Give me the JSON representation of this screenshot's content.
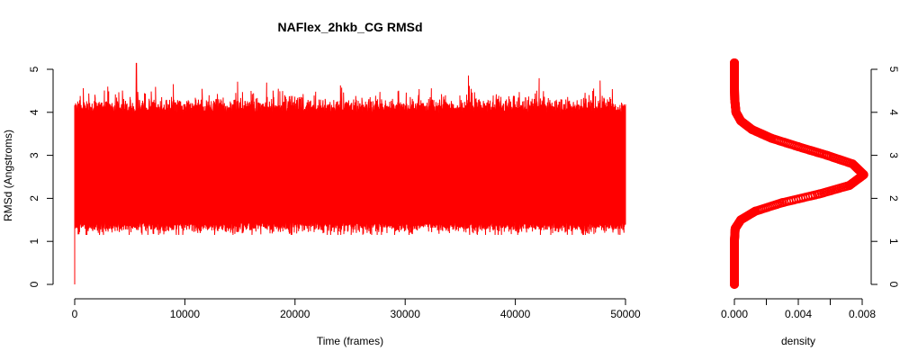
{
  "chart_data": [
    {
      "type": "line",
      "title": "NAFlex_2hkb_CG RMSd",
      "xlabel": "Time (frames)",
      "ylabel": "RMSd (Angstroms)",
      "xlim": [
        0,
        50000
      ],
      "ylim": [
        0,
        5.15
      ],
      "x_ticks": [
        0,
        10000,
        20000,
        30000,
        40000,
        50000
      ],
      "x_tick_labels": [
        "0",
        "10000",
        "20000",
        "30000",
        "40000",
        "50000"
      ],
      "y_ticks": [
        0,
        1,
        2,
        3,
        4,
        5
      ],
      "y_tick_labels": [
        "0",
        "1",
        "2",
        "3",
        "4",
        "5"
      ],
      "series_color": "#ff0000",
      "grid": false,
      "series": [
        {
          "n_frames": 50000,
          "start_value": 0.0,
          "mean": 2.65,
          "typical_min": 1.5,
          "typical_max": 3.9,
          "overall_min": 1.15,
          "overall_max": 5.15,
          "max_at_frame": 5600,
          "min_at_frame": 12700
        }
      ]
    },
    {
      "type": "line",
      "title": "",
      "xlabel": "density",
      "ylabel": "",
      "xlim": [
        0,
        0.008
      ],
      "ylim": [
        0,
        5.15
      ],
      "x_ticks": [
        0,
        0.002,
        0.004,
        0.006,
        0.008
      ],
      "x_tick_labels": [
        "0.000",
        "",
        "0.004",
        "",
        "0.008"
      ],
      "y_ticks": [
        0,
        1,
        2,
        3,
        4,
        5
      ],
      "y_tick_labels": [
        "0",
        "1",
        "2",
        "3",
        "4",
        "5"
      ],
      "y_axis_side": "right",
      "marker": "open-circle",
      "series_color": "#ff0000",
      "grid": false,
      "series": [
        {
          "peak_rmsd": 2.55,
          "peak_density": 0.0081,
          "points": [
            {
              "rmsd": 0.0,
              "density": 0.0
            },
            {
              "rmsd": 1.0,
              "density": 0.0
            },
            {
              "rmsd": 1.3,
              "density": 5e-05
            },
            {
              "rmsd": 1.5,
              "density": 0.0004
            },
            {
              "rmsd": 1.7,
              "density": 0.0013
            },
            {
              "rmsd": 1.9,
              "density": 0.003
            },
            {
              "rmsd": 2.1,
              "density": 0.0053
            },
            {
              "rmsd": 2.3,
              "density": 0.0072
            },
            {
              "rmsd": 2.55,
              "density": 0.0081
            },
            {
              "rmsd": 2.8,
              "density": 0.0074
            },
            {
              "rmsd": 3.0,
              "density": 0.0058
            },
            {
              "rmsd": 3.2,
              "density": 0.004
            },
            {
              "rmsd": 3.4,
              "density": 0.0023
            },
            {
              "rmsd": 3.6,
              "density": 0.0011
            },
            {
              "rmsd": 3.8,
              "density": 0.0004
            },
            {
              "rmsd": 4.0,
              "density": 0.0001
            },
            {
              "rmsd": 4.3,
              "density": 2e-05
            },
            {
              "rmsd": 4.6,
              "density": 0.0
            },
            {
              "rmsd": 5.15,
              "density": 0.0
            }
          ]
        }
      ]
    }
  ]
}
